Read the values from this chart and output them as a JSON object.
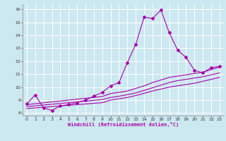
{
  "xlabel": "Windchill (Refroidissement éolien,°C)",
  "bg_color": "#cce8f0",
  "line_color": "#aa00aa",
  "grid_color": "#ffffff",
  "xlim": [
    -0.5,
    23.5
  ],
  "ylim": [
    7.8,
    16.4
  ],
  "yticks": [
    8,
    9,
    10,
    11,
    12,
    13,
    14,
    15,
    16
  ],
  "xticks": [
    0,
    1,
    2,
    3,
    4,
    5,
    6,
    7,
    8,
    9,
    10,
    11,
    12,
    13,
    14,
    15,
    16,
    17,
    18,
    19,
    20,
    21,
    22,
    23
  ],
  "line1_x": [
    0,
    1,
    2,
    3,
    4,
    5,
    6,
    7,
    8,
    9,
    10,
    11,
    12,
    13,
    14,
    15,
    16,
    17,
    18,
    19,
    20,
    21,
    22,
    23
  ],
  "line1_y": [
    8.7,
    9.4,
    8.4,
    8.2,
    8.55,
    8.65,
    8.8,
    9.0,
    9.3,
    9.6,
    10.1,
    10.35,
    11.9,
    13.3,
    15.4,
    15.3,
    15.95,
    14.2,
    12.85,
    12.3,
    11.3,
    11.1,
    11.5,
    11.6
  ],
  "line2_x": [
    0,
    1,
    2,
    3,
    4,
    5,
    6,
    7,
    8,
    9,
    10,
    11,
    12,
    13,
    14,
    15,
    16,
    17,
    18,
    19,
    20,
    21,
    22,
    23
  ],
  "line2_y": [
    8.65,
    8.72,
    8.79,
    8.86,
    8.93,
    9.0,
    9.07,
    9.14,
    9.21,
    9.28,
    9.5,
    9.6,
    9.7,
    9.9,
    10.1,
    10.35,
    10.55,
    10.75,
    10.85,
    10.95,
    11.05,
    11.15,
    11.35,
    11.55
  ],
  "line3_x": [
    0,
    1,
    2,
    3,
    4,
    5,
    6,
    7,
    8,
    9,
    10,
    11,
    12,
    13,
    14,
    15,
    16,
    17,
    18,
    19,
    20,
    21,
    22,
    23
  ],
  "line3_y": [
    8.5,
    8.56,
    8.62,
    8.68,
    8.74,
    8.8,
    8.86,
    8.92,
    8.98,
    9.04,
    9.2,
    9.3,
    9.42,
    9.55,
    9.75,
    9.95,
    10.15,
    10.35,
    10.5,
    10.6,
    10.7,
    10.8,
    10.95,
    11.1
  ],
  "line4_x": [
    0,
    1,
    2,
    3,
    4,
    5,
    6,
    7,
    8,
    9,
    10,
    11,
    12,
    13,
    14,
    15,
    16,
    17,
    18,
    19,
    20,
    21,
    22,
    23
  ],
  "line4_y": [
    8.35,
    8.4,
    8.45,
    8.5,
    8.55,
    8.6,
    8.65,
    8.7,
    8.75,
    8.8,
    9.0,
    9.1,
    9.2,
    9.35,
    9.52,
    9.7,
    9.85,
    10.0,
    10.1,
    10.2,
    10.3,
    10.45,
    10.6,
    10.75
  ]
}
